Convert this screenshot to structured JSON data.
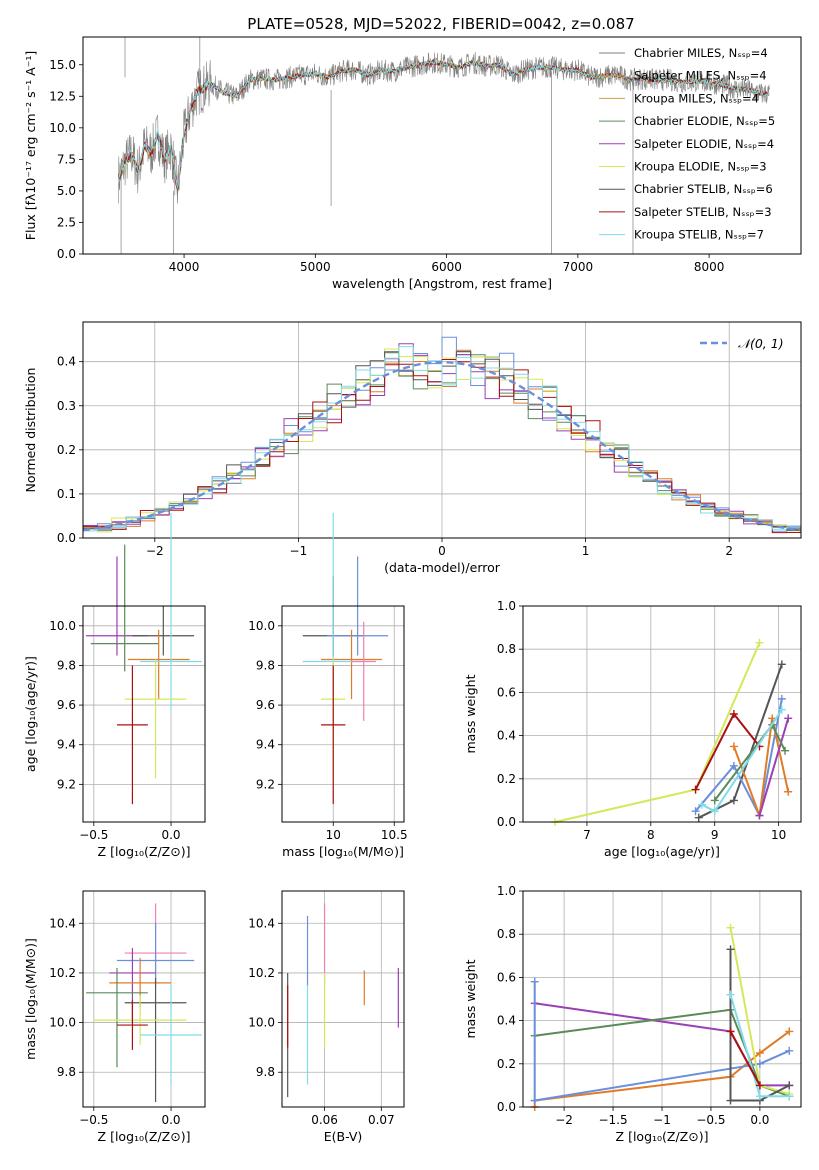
{
  "figure_title": "PLATE=0528, MJD=52022, FIBERID=0042, z=0.087",
  "colors": {
    "gray": "#808080",
    "orange": "#e07b28",
    "blue": "#6a8fdc",
    "green": "#5a8a5a",
    "purple": "#9c3fb5",
    "yellow": "#d4e85a",
    "darkgray": "#555555",
    "darkred": "#aa1111",
    "cyan": "#80dce8",
    "pink": "#f080b0",
    "grid": "#b0b0b0"
  },
  "chart_data": [
    {
      "id": "spectrum",
      "type": "line",
      "xlabel": "wavelength [Angstrom, rest frame]",
      "ylabel": "Flux [fλ10⁻¹⁷ erg cm⁻² s⁻¹ A⁻¹]",
      "xlim": [
        3230,
        8700
      ],
      "ylim": [
        0,
        17.2
      ],
      "xticks": [
        4000,
        5000,
        6000,
        7000,
        8000
      ],
      "yticks": [
        0.0,
        2.5,
        5.0,
        7.5,
        10.0,
        12.5,
        15.0
      ],
      "grid": false,
      "legend_position": "right",
      "continuum": {
        "x": [
          3500,
          3550,
          3600,
          3650,
          3700,
          3750,
          3800,
          3850,
          3900,
          3950,
          4000,
          4050,
          4100,
          4200,
          4300,
          4400,
          4500,
          4600,
          4700,
          4800,
          4900,
          5000,
          5100,
          5200,
          5300,
          5400,
          5500,
          5600,
          5700,
          5800,
          5900,
          6000,
          6100,
          6200,
          6300,
          6400,
          6500,
          6600,
          6700,
          6800,
          6900,
          7000,
          7100,
          7200,
          7300,
          7400,
          7500,
          7600,
          7700,
          7800,
          7900,
          8000,
          8100,
          8200,
          8300,
          8400
        ],
        "y": [
          6.0,
          7.2,
          8.0,
          6.5,
          8.6,
          8.0,
          9.5,
          7.5,
          8.5,
          5.0,
          9.5,
          11.5,
          12.8,
          13.5,
          12.8,
          12.5,
          13.8,
          13.9,
          13.8,
          14.0,
          14.2,
          14.3,
          14.0,
          14.5,
          14.6,
          14.2,
          14.5,
          14.5,
          14.8,
          15.0,
          15.2,
          15.0,
          14.8,
          15.2,
          14.9,
          15.0,
          14.2,
          14.6,
          14.8,
          14.8,
          14.6,
          14.6,
          14.0,
          14.1,
          14.2,
          13.8,
          13.9,
          13.8,
          13.8,
          13.6,
          13.7,
          13.6,
          13.4,
          13.1,
          13.0,
          12.7
        ]
      },
      "series": [
        {
          "name": "Chabrier MILES, Nₛₛₚ=4",
          "color": "#808080"
        },
        {
          "name": "Salpeter MILES, Nₛₛₚ=4",
          "color": "#e07b28"
        },
        {
          "name": "Kroupa MILES, Nₛₛₚ=4",
          "color": "#c8a040"
        },
        {
          "name": "Chabrier ELODIE, Nₛₛₚ=5",
          "color": "#5a8a5a"
        },
        {
          "name": "Salpeter ELODIE, Nₛₛₚ=4",
          "color": "#9c3fb5"
        },
        {
          "name": "Kroupa ELODIE, Nₛₛₚ=3",
          "color": "#d4e85a"
        },
        {
          "name": "Chabrier STELIB, Nₛₛₚ=6",
          "color": "#555555"
        },
        {
          "name": "Salpeter STELIB, Nₛₛₚ=3",
          "color": "#aa1111"
        },
        {
          "name": "Kroupa STELIB, Nₛₛₚ=7",
          "color": "#80dce8"
        }
      ]
    },
    {
      "id": "residuals",
      "type": "step",
      "xlabel": "(data-model)/error",
      "ylabel": "Normed distribution",
      "xlim": [
        -2.5,
        2.5
      ],
      "ylim": [
        0,
        0.49
      ],
      "xticks": [
        -2,
        -1,
        0,
        1,
        2
      ],
      "yticks": [
        0.0,
        0.1,
        0.2,
        0.3,
        0.4
      ],
      "grid": true,
      "legend": "𝒩(0, 1)",
      "legend_position": "top-right",
      "bin_width": 0.1,
      "bin_start": -2.5,
      "hist_colors": [
        "#6a8fdc",
        "#e07b28",
        "#5a8a5a",
        "#9c3fb5",
        "#d4e85a",
        "#555555",
        "#aa1111",
        "#80dce8"
      ]
    },
    {
      "id": "age_vs_Z",
      "type": "errorbar",
      "xlabel": "Z [log₁₀(Z/Z⊙)]",
      "ylabel": "age  [log₁₀(age/yr)]",
      "xlim": [
        -0.57,
        0.22
      ],
      "ylim": [
        9.01,
        10.1
      ],
      "xticks": [
        -0.5,
        0.0
      ],
      "yticks": [
        9.2,
        9.4,
        9.6,
        9.8,
        10.0
      ],
      "grid": true,
      "points": [
        {
          "x": -0.35,
          "y": 9.95,
          "xerr": 0.2,
          "yerr": [
            0.1,
            0.4
          ],
          "c": "#9c3fb5"
        },
        {
          "x": -0.05,
          "y": 9.95,
          "xerr": 0.2,
          "yerr": [
            0.1,
            0.15
          ],
          "c": "#555555"
        },
        {
          "x": -0.3,
          "y": 9.91,
          "xerr": 0.22,
          "yerr": [
            0.14,
            0.5
          ],
          "c": "#5a8a5a"
        },
        {
          "x": -0.08,
          "y": 9.83,
          "xerr": 0.2,
          "yerr": [
            0.2,
            0.15
          ],
          "c": "#e07b28"
        },
        {
          "x": 0.0,
          "y": 9.82,
          "xerr": 0.2,
          "yerr": [
            0.25,
            0.75
          ],
          "c": "#80dce8"
        },
        {
          "x": -0.1,
          "y": 9.63,
          "xerr": 0.2,
          "yerr": [
            0.4,
            0.2
          ],
          "c": "#d4e85a"
        },
        {
          "x": -0.25,
          "y": 9.5,
          "xerr": 0.1,
          "yerr": [
            0.4,
            0.3
          ],
          "c": "#aa1111"
        }
      ]
    },
    {
      "id": "age_vs_mass",
      "type": "errorbar",
      "xlabel": "mass [log₁₀(M/M⊙)]",
      "xlim": [
        9.58,
        10.58
      ],
      "ylim": [
        9.01,
        10.1
      ],
      "xticks": [
        10.0,
        10.5
      ],
      "yticks": [
        9.2,
        9.4,
        9.6,
        9.8,
        10.0
      ],
      "grid": true,
      "points": [
        {
          "x": 10.0,
          "y": 9.95,
          "xerr": 0.25,
          "yerr": [
            0.1,
            0.3
          ],
          "c": "#555555"
        },
        {
          "x": 10.2,
          "y": 9.95,
          "xerr": 0.25,
          "yerr": [
            0.1,
            0.4
          ],
          "c": "#6a8fdc"
        },
        {
          "x": 10.15,
          "y": 9.83,
          "xerr": 0.25,
          "yerr": [
            0.2,
            0.15
          ],
          "c": "#e07b28"
        },
        {
          "x": 10.0,
          "y": 9.82,
          "xerr": 0.25,
          "yerr": [
            0.25,
            0.75
          ],
          "c": "#80dce8"
        },
        {
          "x": 10.0,
          "y": 9.63,
          "xerr": 0.1,
          "yerr": [
            0.4,
            0.2
          ],
          "c": "#d4e85a"
        },
        {
          "x": 10.0,
          "y": 9.5,
          "xerr": 0.1,
          "yerr": [
            0.4,
            0.3
          ],
          "c": "#aa1111"
        },
        {
          "x": 10.25,
          "y": 9.82,
          "xerr": 0.1,
          "yerr": [
            0.3,
            0.2
          ],
          "c": "#f080b0"
        }
      ]
    },
    {
      "id": "weight_vs_age",
      "type": "line",
      "xlabel": "age  [log₁₀(age/yr)]",
      "ylabel": "mass weight",
      "xlim": [
        6.0,
        10.35
      ],
      "ylim": [
        0,
        1.0
      ],
      "xticks": [
        7,
        8,
        9,
        10
      ],
      "yticks": [
        0.0,
        0.2,
        0.4,
        0.6,
        0.8,
        1.0
      ],
      "grid": true,
      "series": [
        {
          "c": "#d4e85a",
          "points": [
            [
              6.5,
              0.0
            ],
            [
              8.7,
              0.15
            ],
            [
              9.7,
              0.83
            ]
          ]
        },
        {
          "c": "#555555",
          "points": [
            [
              8.75,
              0.02
            ],
            [
              9.3,
              0.1
            ],
            [
              10.05,
              0.73
            ]
          ]
        },
        {
          "c": "#aa1111",
          "points": [
            [
              8.7,
              0.15
            ],
            [
              9.3,
              0.5
            ],
            [
              9.7,
              0.35
            ]
          ]
        },
        {
          "c": "#6a8fdc",
          "points": [
            [
              8.7,
              0.05
            ],
            [
              9.3,
              0.26
            ],
            [
              9.7,
              0.03
            ],
            [
              10.05,
              0.57
            ]
          ]
        },
        {
          "c": "#e07b28",
          "points": [
            [
              9.3,
              0.35
            ],
            [
              9.7,
              0.03
            ],
            [
              9.9,
              0.48
            ],
            [
              10.15,
              0.14
            ]
          ]
        },
        {
          "c": "#9c3fb5",
          "points": [
            [
              9.7,
              0.03
            ],
            [
              10.15,
              0.48
            ]
          ]
        },
        {
          "c": "#5a8a5a",
          "points": [
            [
              9.0,
              0.1
            ],
            [
              9.9,
              0.45
            ],
            [
              10.1,
              0.33
            ]
          ]
        },
        {
          "c": "#80dce8",
          "points": [
            [
              8.8,
              0.08
            ],
            [
              9.0,
              0.05
            ],
            [
              10.05,
              0.52
            ]
          ]
        }
      ]
    },
    {
      "id": "mass_vs_Z",
      "type": "errorbar",
      "xlabel": "Z [log₁₀(Z/Z⊙)]",
      "ylabel": "mass [log₁₀(M/M⊙)]",
      "xlim": [
        -0.57,
        0.22
      ],
      "ylim": [
        9.66,
        10.53
      ],
      "xticks": [
        -0.5,
        0.0
      ],
      "yticks": [
        9.8,
        10.0,
        10.2,
        10.4
      ],
      "grid": true,
      "points": [
        {
          "x": -0.1,
          "y": 10.28,
          "xerr": 0.2,
          "yerr": [
            0.1,
            0.2
          ],
          "c": "#f080b0"
        },
        {
          "x": -0.1,
          "y": 10.25,
          "xerr": 0.25,
          "yerr": [
            0.1,
            0.15
          ],
          "c": "#6a8fdc"
        },
        {
          "x": -0.25,
          "y": 10.2,
          "xerr": 0.15,
          "yerr": [
            0.2,
            0.1
          ],
          "c": "#9c3fb5"
        },
        {
          "x": -0.2,
          "y": 10.16,
          "xerr": 0.2,
          "yerr": [
            0.1,
            0.1
          ],
          "c": "#e07b28"
        },
        {
          "x": -0.35,
          "y": 10.12,
          "xerr": 0.2,
          "yerr": [
            0.3,
            0.1
          ],
          "c": "#5a8a5a"
        },
        {
          "x": -0.1,
          "y": 10.08,
          "xerr": 0.2,
          "yerr": [
            0.4,
            0.1
          ],
          "c": "#555555"
        },
        {
          "x": -0.2,
          "y": 10.01,
          "xerr": 0.3,
          "yerr": [
            0.1,
            0.1
          ],
          "c": "#d4e85a"
        },
        {
          "x": 0.0,
          "y": 9.95,
          "xerr": 0.2,
          "yerr": [
            0.2,
            0.2
          ],
          "c": "#80dce8"
        },
        {
          "x": -0.25,
          "y": 9.99,
          "xerr": 0.1,
          "yerr": [
            0.1,
            0.1
          ],
          "c": "#aa1111"
        }
      ]
    },
    {
      "id": "mass_vs_EBV",
      "type": "errorbar",
      "xlabel": "E(B-V)",
      "xlim": [
        0.0525,
        0.074
      ],
      "ylim": [
        9.66,
        10.53
      ],
      "xticks": [
        0.06,
        0.07
      ],
      "yticks": [
        9.8,
        10.0,
        10.2,
        10.4
      ],
      "grid": true,
      "points": [
        {
          "x": 0.0535,
          "y": 9.95,
          "yerr": [
            0.25,
            0.25
          ],
          "c": "#555555"
        },
        {
          "x": 0.0535,
          "y": 10.0,
          "yerr": [
            0.1,
            0.15
          ],
          "c": "#aa1111"
        },
        {
          "x": 0.057,
          "y": 10.25,
          "yerr": [
            0.1,
            0.18
          ],
          "c": "#6a8fdc"
        },
        {
          "x": 0.057,
          "y": 9.95,
          "yerr": [
            0.2,
            0.2
          ],
          "c": "#80dce8"
        },
        {
          "x": 0.06,
          "y": 10.25,
          "yerr": [
            0.1,
            0.23
          ],
          "c": "#f080b0"
        },
        {
          "x": 0.06,
          "y": 10.0,
          "yerr": [
            0.1,
            0.2
          ],
          "c": "#d4e85a"
        },
        {
          "x": 0.067,
          "y": 10.14,
          "yerr": [
            0.07,
            0.07
          ],
          "c": "#e07b28"
        },
        {
          "x": 0.073,
          "y": 10.1,
          "yerr": [
            0.12,
            0.12
          ],
          "c": "#9c3fb5"
        }
      ]
    },
    {
      "id": "weight_vs_Z",
      "type": "line",
      "xlabel": "Z [log₁₀(Z/Z⊙)]",
      "ylabel": "mass weight",
      "xlim": [
        -2.42,
        0.42
      ],
      "ylim": [
        0,
        1.0
      ],
      "xticks": [
        -2.0,
        -1.5,
        -1.0,
        -0.5,
        0.0
      ],
      "yticks": [
        0.0,
        0.2,
        0.4,
        0.6,
        0.8,
        1.0
      ],
      "grid": true,
      "series": [
        {
          "c": "#9c3fb5",
          "points": [
            [
              -2.3,
              0.48
            ],
            [
              -0.3,
              0.35
            ],
            [
              0.0,
              0.1
            ],
            [
              0.3,
              0.1
            ]
          ]
        },
        {
          "c": "#5a8a5a",
          "points": [
            [
              -2.3,
              0.33
            ],
            [
              -0.3,
              0.45
            ],
            [
              0.0,
              0.1
            ],
            [
              0.3,
              0.05
            ]
          ]
        },
        {
          "c": "#e07b28",
          "points": [
            [
              -2.3,
              0.0
            ],
            [
              -2.3,
              0.03
            ],
            [
              -0.3,
              0.14
            ],
            [
              0.0,
              0.25
            ],
            [
              0.3,
              0.35
            ]
          ]
        },
        {
          "c": "#6a8fdc",
          "points": [
            [
              -2.3,
              0.58
            ],
            [
              -2.3,
              0.03
            ],
            [
              0.0,
              0.2
            ],
            [
              0.3,
              0.26
            ]
          ]
        },
        {
          "c": "#d4e85a",
          "points": [
            [
              -0.3,
              0.83
            ],
            [
              0.0,
              0.1
            ],
            [
              0.3,
              0.06
            ]
          ]
        },
        {
          "c": "#555555",
          "points": [
            [
              -0.3,
              0.73
            ],
            [
              -0.3,
              0.03
            ],
            [
              0.0,
              0.03
            ],
            [
              0.3,
              0.1
            ]
          ]
        },
        {
          "c": "#80dce8",
          "points": [
            [
              -0.3,
              0.52
            ],
            [
              0.0,
              0.05
            ],
            [
              0.3,
              0.05
            ]
          ]
        },
        {
          "c": "#aa1111",
          "points": [
            [
              -0.3,
              0.35
            ],
            [
              0.0,
              0.1
            ]
          ]
        }
      ]
    }
  ]
}
